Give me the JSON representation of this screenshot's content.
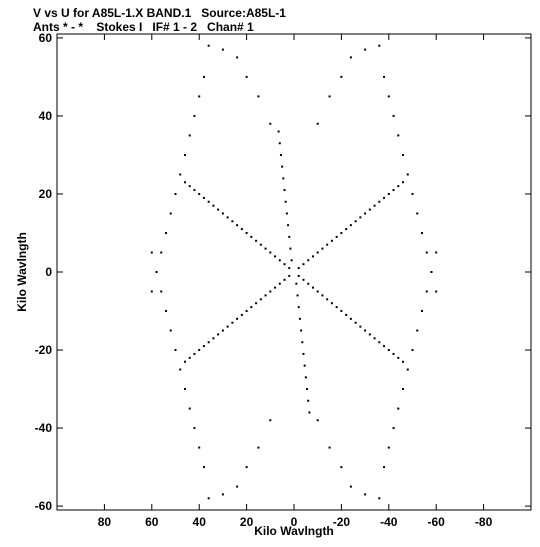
{
  "chart_data": {
    "type": "scatter",
    "title_line1": "V vs U for A85L-1.X BAND.1   Source:A85L-1",
    "title_line2": "Ants * - *    Stokes I   IF# 1 - 2   Chan# 1",
    "xlabel": "Kilo Wavlngth",
    "ylabel": "Kilo Wavlngth",
    "xlim": [
      100,
      -100
    ],
    "ylim": [
      -61,
      61
    ],
    "x_ticks": [
      80,
      60,
      40,
      20,
      0,
      -20,
      -40,
      -60,
      -80
    ],
    "y_ticks": [
      60,
      40,
      20,
      0,
      -20,
      -40,
      -60
    ],
    "grid": false,
    "arms": [
      {
        "points": [
          [
            2,
            1
          ],
          [
            4,
            2
          ],
          [
            6,
            3
          ],
          [
            8,
            4
          ],
          [
            10,
            5
          ],
          [
            12,
            6
          ],
          [
            14,
            7
          ],
          [
            16,
            8
          ],
          [
            18,
            9
          ],
          [
            20,
            10
          ],
          [
            22,
            11
          ],
          [
            24,
            12
          ],
          [
            26,
            13
          ],
          [
            28,
            14
          ],
          [
            30,
            15
          ],
          [
            32,
            16
          ],
          [
            34,
            17
          ],
          [
            36,
            18
          ],
          [
            38,
            19
          ],
          [
            40,
            20
          ],
          [
            42,
            21
          ],
          [
            44,
            22
          ],
          [
            46,
            23
          ]
        ]
      },
      {
        "points": [
          [
            -2,
            -1
          ],
          [
            -4,
            -2
          ],
          [
            -6,
            -3
          ],
          [
            -8,
            -4
          ],
          [
            -10,
            -5
          ],
          [
            -12,
            -6
          ],
          [
            -14,
            -7
          ],
          [
            -16,
            -8
          ],
          [
            -18,
            -9
          ],
          [
            -20,
            -10
          ],
          [
            -22,
            -11
          ],
          [
            -24,
            -12
          ],
          [
            -26,
            -13
          ],
          [
            -28,
            -14
          ],
          [
            -30,
            -15
          ],
          [
            -32,
            -16
          ],
          [
            -34,
            -17
          ],
          [
            -36,
            -18
          ],
          [
            -38,
            -19
          ],
          [
            -40,
            -20
          ],
          [
            -42,
            -21
          ],
          [
            -44,
            -22
          ],
          [
            -46,
            -23
          ]
        ]
      },
      {
        "points": [
          [
            -2,
            1
          ],
          [
            -4,
            2
          ],
          [
            -6,
            3
          ],
          [
            -8,
            4
          ],
          [
            -10,
            5
          ],
          [
            -12,
            6
          ],
          [
            -14,
            7
          ],
          [
            -16,
            8
          ],
          [
            -18,
            9
          ],
          [
            -20,
            10
          ],
          [
            -22,
            11
          ],
          [
            -24,
            12
          ],
          [
            -26,
            13
          ],
          [
            -28,
            14
          ],
          [
            -30,
            15
          ],
          [
            -32,
            16
          ],
          [
            -34,
            17
          ],
          [
            -36,
            18
          ],
          [
            -38,
            19
          ],
          [
            -40,
            20
          ],
          [
            -42,
            21
          ],
          [
            -44,
            22
          ],
          [
            -46,
            23
          ]
        ]
      },
      {
        "points": [
          [
            2,
            -1
          ],
          [
            4,
            -2
          ],
          [
            6,
            -3
          ],
          [
            8,
            -4
          ],
          [
            10,
            -5
          ],
          [
            12,
            -6
          ],
          [
            14,
            -7
          ],
          [
            16,
            -8
          ],
          [
            18,
            -9
          ],
          [
            20,
            -10
          ],
          [
            22,
            -11
          ],
          [
            24,
            -12
          ],
          [
            26,
            -13
          ],
          [
            28,
            -14
          ],
          [
            30,
            -15
          ],
          [
            32,
            -16
          ],
          [
            34,
            -17
          ],
          [
            36,
            -18
          ],
          [
            38,
            -19
          ],
          [
            40,
            -20
          ],
          [
            42,
            -21
          ],
          [
            44,
            -22
          ],
          [
            46,
            -23
          ]
        ]
      },
      {
        "points": [
          [
            1,
            3
          ],
          [
            1.5,
            6
          ],
          [
            2,
            9
          ],
          [
            2.5,
            12
          ],
          [
            3,
            15
          ],
          [
            3.5,
            18
          ],
          [
            4,
            21
          ],
          [
            4.5,
            24
          ],
          [
            5,
            27
          ],
          [
            5.5,
            30
          ],
          [
            6,
            33
          ],
          [
            6.5,
            36
          ]
        ]
      },
      {
        "points": [
          [
            -1,
            -3
          ],
          [
            -1.5,
            -6
          ],
          [
            -2,
            -9
          ],
          [
            -2.5,
            -12
          ],
          [
            -3,
            -15
          ],
          [
            -3.5,
            -18
          ],
          [
            -4,
            -21
          ],
          [
            -4.5,
            -24
          ],
          [
            -5,
            -27
          ],
          [
            -5.5,
            -30
          ],
          [
            -6,
            -33
          ],
          [
            -6.5,
            -36
          ]
        ]
      }
    ],
    "families": [
      {
        "points": [
          [
            10,
            38
          ],
          [
            15,
            45
          ],
          [
            20,
            50
          ],
          [
            24,
            55
          ],
          [
            30,
            57
          ],
          [
            36,
            58
          ],
          [
            38,
            50
          ],
          [
            40,
            45
          ],
          [
            42,
            40
          ],
          [
            44,
            35
          ],
          [
            46,
            30
          ],
          [
            48,
            25
          ],
          [
            50,
            20
          ],
          [
            52,
            15
          ],
          [
            54,
            10
          ],
          [
            56,
            5
          ],
          [
            58,
            0
          ],
          [
            60,
            -5
          ]
        ]
      },
      {
        "points": [
          [
            -10,
            38
          ],
          [
            -15,
            45
          ],
          [
            -20,
            50
          ],
          [
            -24,
            55
          ],
          [
            -30,
            57
          ],
          [
            -36,
            58
          ],
          [
            -38,
            50
          ],
          [
            -40,
            45
          ],
          [
            -42,
            40
          ],
          [
            -44,
            35
          ],
          [
            -46,
            30
          ],
          [
            -48,
            25
          ],
          [
            -50,
            20
          ],
          [
            -52,
            15
          ],
          [
            -54,
            10
          ],
          [
            -56,
            5
          ],
          [
            -58,
            0
          ],
          [
            -60,
            -5
          ]
        ]
      },
      {
        "points": [
          [
            10,
            -38
          ],
          [
            15,
            -45
          ],
          [
            20,
            -50
          ],
          [
            24,
            -55
          ],
          [
            30,
            -57
          ],
          [
            36,
            -58
          ],
          [
            38,
            -50
          ],
          [
            40,
            -45
          ],
          [
            42,
            -40
          ],
          [
            44,
            -35
          ],
          [
            46,
            -30
          ],
          [
            48,
            -25
          ],
          [
            50,
            -20
          ],
          [
            52,
            -15
          ],
          [
            54,
            -10
          ],
          [
            56,
            -5
          ],
          [
            58,
            0
          ],
          [
            60,
            5
          ]
        ]
      },
      {
        "points": [
          [
            -10,
            -38
          ],
          [
            -15,
            -45
          ],
          [
            -20,
            -50
          ],
          [
            -24,
            -55
          ],
          [
            -30,
            -57
          ],
          [
            -36,
            -58
          ],
          [
            -38,
            -50
          ],
          [
            -40,
            -45
          ],
          [
            -42,
            -40
          ],
          [
            -44,
            -35
          ],
          [
            -46,
            -30
          ],
          [
            -48,
            -25
          ],
          [
            -50,
            -20
          ],
          [
            -52,
            -15
          ],
          [
            -54,
            -10
          ],
          [
            -56,
            -5
          ],
          [
            -58,
            0
          ],
          [
            -60,
            5
          ]
        ]
      }
    ]
  }
}
